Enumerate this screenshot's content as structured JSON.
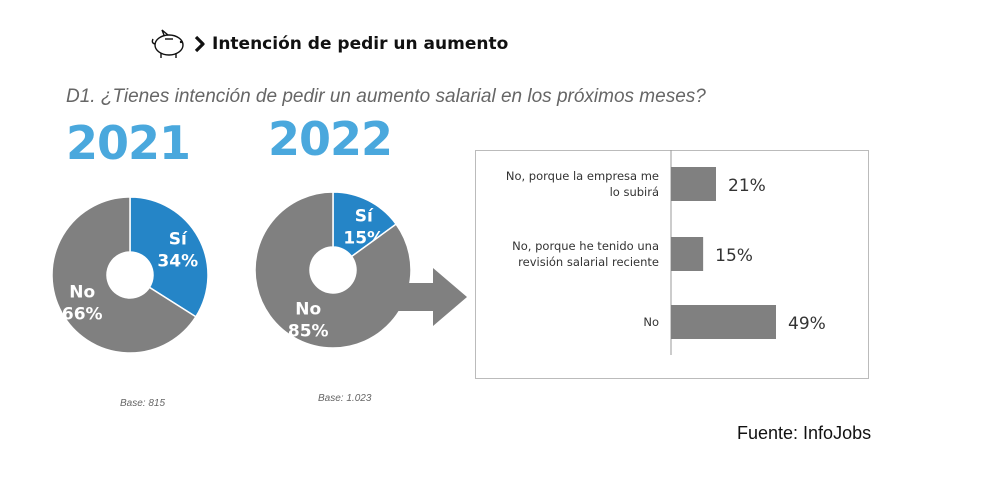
{
  "header": {
    "title": "Intención de pedir un aumento",
    "icons": [
      "piggy-bank-icon",
      "chevron-right-icon"
    ]
  },
  "question": "D1. ¿Tienes intención de pedir un aumento salarial en los próximos meses?",
  "source": "Fuente: InfoJobs",
  "colors": {
    "yes": "#2585c7",
    "no": "#808080",
    "year": "#4aa8dd",
    "bar": "#808080",
    "arrow": "#808080"
  },
  "chart_data": [
    {
      "type": "pie",
      "title": "2021",
      "subtitle": "Base: 815",
      "slices": [
        {
          "label": "Sí",
          "value": 34,
          "display": "34%"
        },
        {
          "label": "No",
          "value": 66,
          "display": "66%"
        }
      ]
    },
    {
      "type": "pie",
      "title": "2022",
      "subtitle": "Base: 1.023",
      "slices": [
        {
          "label": "Sí",
          "value": 15,
          "display": "15%"
        },
        {
          "label": "No",
          "value": 85,
          "display": "85%"
        }
      ]
    },
    {
      "type": "bar",
      "orientation": "horizontal",
      "categories": [
        [
          "No, porque la empresa me",
          "lo subirá"
        ],
        [
          "No, porque he tenido una",
          "revisión salarial reciente"
        ],
        [
          "No"
        ]
      ],
      "values": [
        21,
        15,
        49
      ],
      "value_labels": [
        "21%",
        "15%",
        "49%"
      ]
    }
  ]
}
